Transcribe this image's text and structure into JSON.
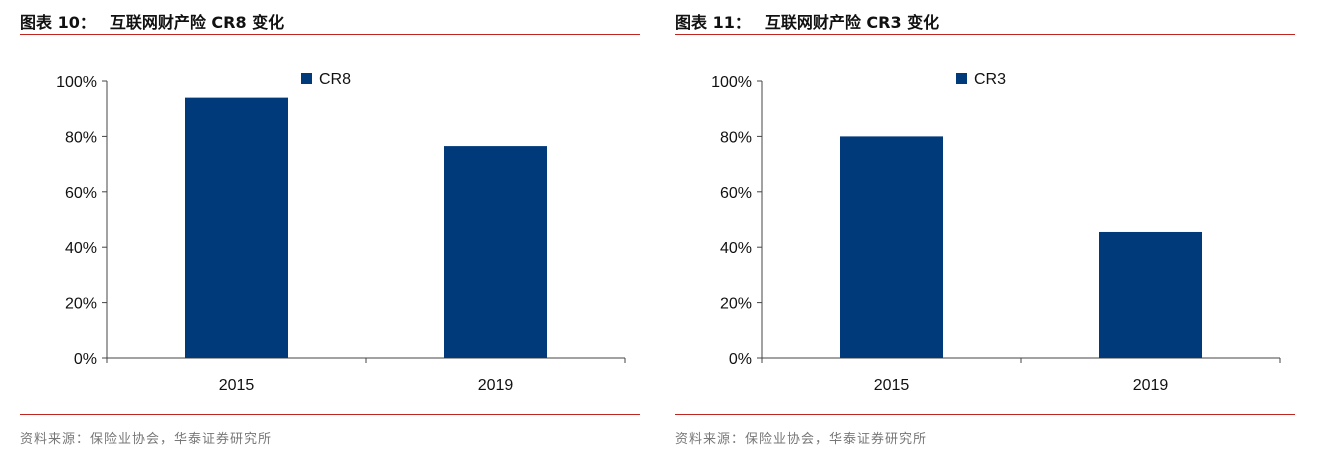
{
  "charts": [
    {
      "figure_label": "图表 10：",
      "title": "互联网财产险 CR8 变化",
      "source": "资料来源：保险业协会，华泰证券研究所",
      "legend_label": "CR8",
      "legend_color": "#003a7a",
      "y_tick_labels": [
        "0%",
        "20%",
        "40%",
        "60%",
        "80%",
        "100%"
      ]
    },
    {
      "figure_label": "图表 11：",
      "title": "互联网财产险 CR3 变化",
      "source": "资料来源：保险业协会，华泰证券研究所",
      "legend_label": "CR3",
      "legend_color": "#003a7a",
      "y_tick_labels": [
        "0%",
        "20%",
        "40%",
        "60%",
        "80%",
        "100%"
      ]
    }
  ],
  "chart_data": [
    {
      "type": "bar",
      "title": "互联网财产险 CR8 变化",
      "categories": [
        "2015",
        "2019"
      ],
      "series": [
        {
          "name": "CR8",
          "values": [
            94,
            76.5
          ],
          "color": "#003a7a"
        }
      ],
      "ylim": [
        0,
        100
      ],
      "y_unit": "%",
      "legend": "top-center",
      "grid": false
    },
    {
      "type": "bar",
      "title": "互联网财产险 CR3 变化",
      "categories": [
        "2015",
        "2019"
      ],
      "series": [
        {
          "name": "CR3",
          "values": [
            80,
            45.5
          ],
          "color": "#003a7a"
        }
      ],
      "ylim": [
        0,
        100
      ],
      "y_unit": "%",
      "legend": "top-center",
      "grid": false
    }
  ]
}
